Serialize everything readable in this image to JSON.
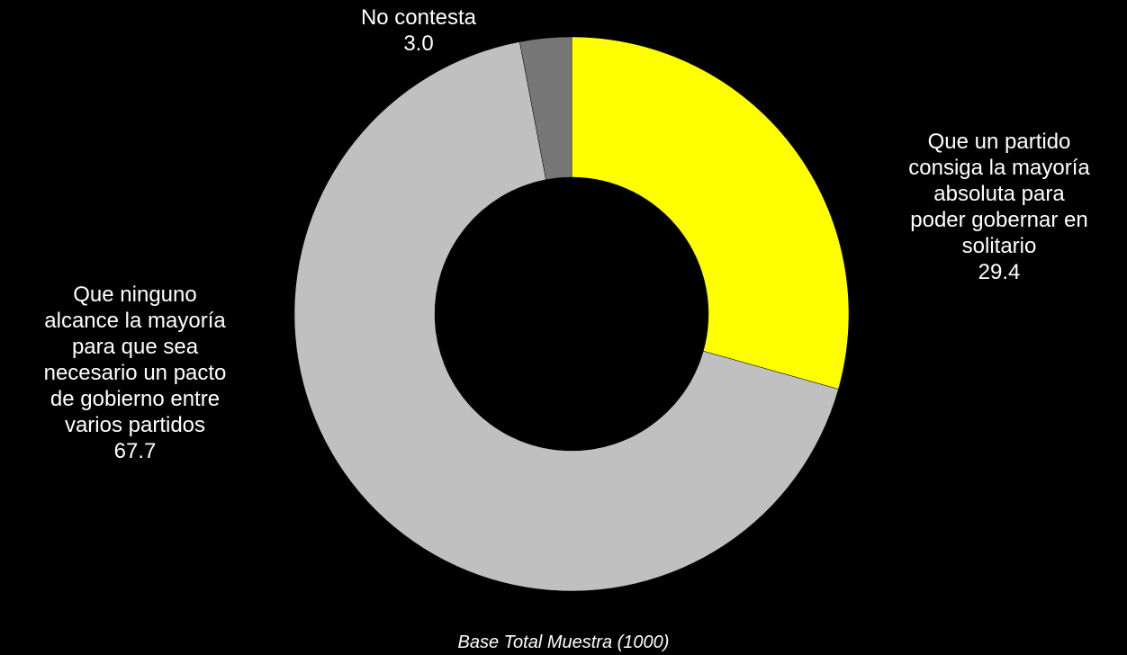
{
  "chart_data": {
    "type": "pie",
    "variant": "donut",
    "categories": [
      "Que un partido consiga la mayoría absoluta para poder gobernar en solitario",
      "Que ninguno alcance la mayoría para que sea necesario un pacto de gobierno entre varios partidos",
      "No contesta"
    ],
    "values": [
      29.4,
      67.7,
      3.0
    ],
    "colors": [
      "#ffff00",
      "#c0c0c0",
      "#777777"
    ],
    "label_lines": [
      [
        "Que un partido",
        "consiga la mayoría",
        "absoluta para",
        "poder gobernar en",
        "solitario"
      ],
      [
        "Que ninguno",
        "alcance la mayoría",
        "para que sea",
        "necesario un pacto",
        "de gobierno entre",
        "varios partidos"
      ],
      [
        "No contesta"
      ]
    ],
    "value_labels": [
      "29.4",
      "67.7",
      "3.0"
    ],
    "footnote": "Base Total Muestra (1000)",
    "legend": "none"
  }
}
